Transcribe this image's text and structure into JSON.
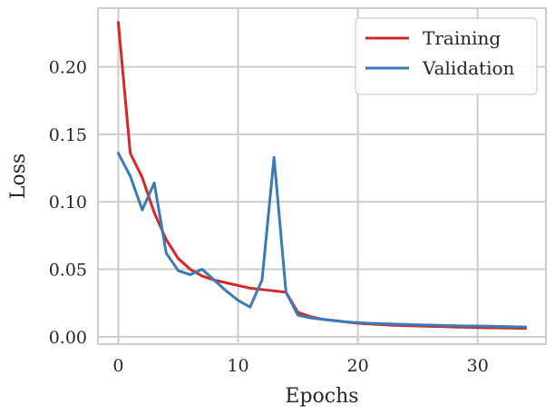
{
  "chart_data": {
    "type": "line",
    "title": "",
    "xlabel": "Epochs",
    "ylabel": "Loss",
    "xlim": [
      -1.7,
      35.7
    ],
    "ylim": [
      -0.0055,
      0.2435
    ],
    "x_ticks": [
      0,
      10,
      20,
      30
    ],
    "x_tick_labels": [
      "0",
      "10",
      "20",
      "30"
    ],
    "y_ticks": [
      0.0,
      0.05,
      0.1,
      0.15,
      0.2
    ],
    "y_tick_labels": [
      "0.00",
      "0.05",
      "0.10",
      "0.15",
      "0.20"
    ],
    "grid": true,
    "legend_position": "top-right",
    "x": [
      0,
      1,
      2,
      3,
      4,
      5,
      6,
      7,
      8,
      9,
      10,
      11,
      12,
      13,
      14,
      15,
      16,
      17,
      18,
      19,
      20,
      21,
      22,
      23,
      24,
      25,
      26,
      27,
      28,
      29,
      30,
      31,
      32,
      33,
      34
    ],
    "series": [
      {
        "name": "Training",
        "color": "#d62728",
        "values": [
          0.233,
          0.136,
          0.118,
          0.092,
          0.072,
          0.058,
          0.05,
          0.045,
          0.042,
          0.04,
          0.038,
          0.036,
          0.035,
          0.034,
          0.033,
          0.018,
          0.015,
          0.013,
          0.012,
          0.011,
          0.01,
          0.0095,
          0.009,
          0.0085,
          0.0082,
          0.008,
          0.0077,
          0.0075,
          0.0072,
          0.007,
          0.0068,
          0.0066,
          0.0065,
          0.0064,
          0.0062
        ]
      },
      {
        "name": "Validation",
        "color": "#3a7ab5",
        "values": [
          0.136,
          0.119,
          0.094,
          0.114,
          0.062,
          0.049,
          0.046,
          0.05,
          0.042,
          0.034,
          0.027,
          0.022,
          0.042,
          0.133,
          0.033,
          0.016,
          0.014,
          0.013,
          0.012,
          0.011,
          0.0105,
          0.01,
          0.0097,
          0.0094,
          0.0091,
          0.0088,
          0.0086,
          0.0084,
          0.0082,
          0.008,
          0.008,
          0.0078,
          0.0076,
          0.0074,
          0.0072
        ]
      }
    ]
  }
}
